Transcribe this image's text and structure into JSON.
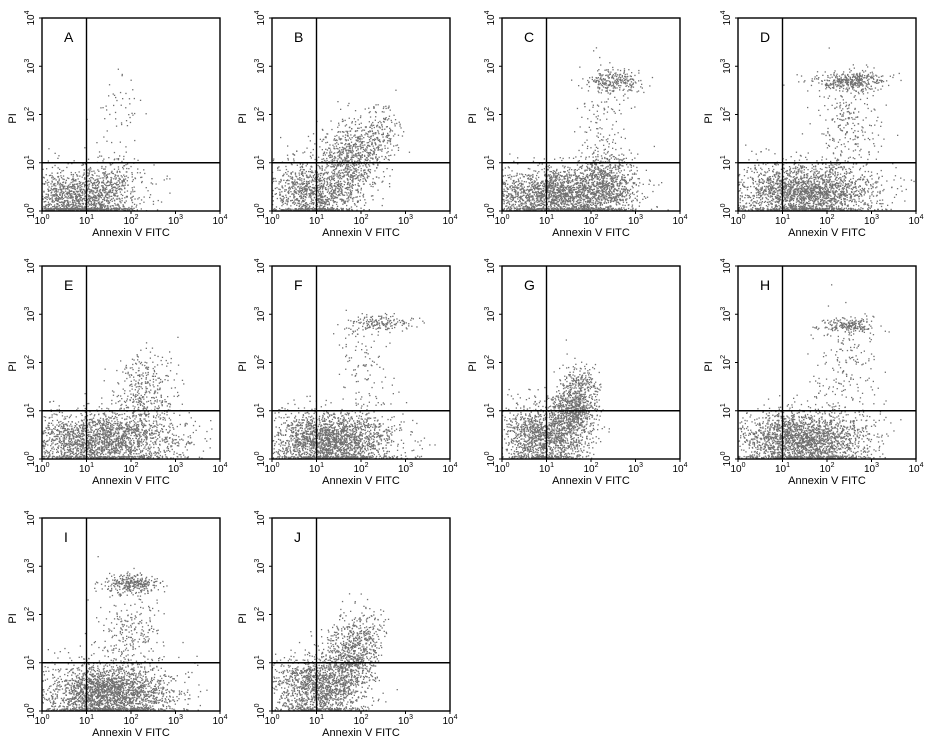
{
  "chart_data": [
    {
      "type": "scatter",
      "panel": "A",
      "xlabel": "Annexin V FITC",
      "ylabel": "PI",
      "xscale": "log",
      "yscale": "log",
      "xlim": [
        1,
        10000
      ],
      "ylim": [
        1,
        10000
      ],
      "gate": {
        "x": 10,
        "y": 10
      },
      "populations": [
        {
          "cx": 6,
          "cy": 1.8,
          "sx": 0.65,
          "sy": 0.3,
          "n": 1400
        },
        {
          "cx": 35,
          "cy": 4,
          "sx": 0.35,
          "sy": 0.35,
          "n": 250
        },
        {
          "cx": 50,
          "cy": 150,
          "sx": 0.25,
          "sy": 0.35,
          "n": 45
        }
      ]
    },
    {
      "type": "scatter",
      "panel": "B",
      "xlabel": "Annexin V FITC",
      "ylabel": "PI",
      "xscale": "log",
      "yscale": "log",
      "xlim": [
        1,
        10000
      ],
      "ylim": [
        1,
        10000
      ],
      "gate": {
        "x": 10,
        "y": 10
      },
      "populations": [
        {
          "cx": 8,
          "cy": 2.5,
          "sx": 0.5,
          "sy": 0.35,
          "n": 1100
        },
        {
          "cx": 60,
          "cy": 12,
          "sx": 0.35,
          "sy": 0.4,
          "n": 700
        },
        {
          "cx": 250,
          "cy": 40,
          "sx": 0.25,
          "sy": 0.3,
          "n": 200
        }
      ]
    },
    {
      "type": "scatter",
      "panel": "C",
      "xlabel": "Annexin V FITC",
      "ylabel": "PI",
      "xscale": "log",
      "yscale": "log",
      "xlim": [
        1,
        10000
      ],
      "ylim": [
        1,
        10000
      ],
      "gate": {
        "x": 10,
        "y": 10
      },
      "populations": [
        {
          "cx": 15,
          "cy": 2.2,
          "sx": 0.75,
          "sy": 0.28,
          "n": 2000
        },
        {
          "cx": 250,
          "cy": 4,
          "sx": 0.35,
          "sy": 0.35,
          "n": 700
        },
        {
          "cx": 300,
          "cy": 500,
          "sx": 0.3,
          "sy": 0.12,
          "n": 250
        },
        {
          "cx": 200,
          "cy": 60,
          "sx": 0.3,
          "sy": 0.5,
          "n": 120
        }
      ]
    },
    {
      "type": "scatter",
      "panel": "D",
      "xlabel": "Annexin V FITC",
      "ylabel": "PI",
      "xscale": "log",
      "yscale": "log",
      "xlim": [
        1,
        10000
      ],
      "ylim": [
        1,
        10000
      ],
      "gate": {
        "x": 10,
        "y": 10
      },
      "populations": [
        {
          "cx": 30,
          "cy": 2.5,
          "sx": 0.8,
          "sy": 0.3,
          "n": 2200
        },
        {
          "cx": 300,
          "cy": 500,
          "sx": 0.4,
          "sy": 0.1,
          "n": 380
        },
        {
          "cx": 300,
          "cy": 50,
          "sx": 0.35,
          "sy": 0.5,
          "n": 250
        }
      ]
    },
    {
      "type": "scatter",
      "panel": "E",
      "xlabel": "Annexin V FITC",
      "ylabel": "PI",
      "xscale": "log",
      "yscale": "log",
      "xlim": [
        1,
        10000
      ],
      "ylim": [
        1,
        10000
      ],
      "gate": {
        "x": 10,
        "y": 10
      },
      "populations": [
        {
          "cx": 20,
          "cy": 2.5,
          "sx": 0.9,
          "sy": 0.3,
          "n": 2200
        },
        {
          "cx": 200,
          "cy": 20,
          "sx": 0.35,
          "sy": 0.4,
          "n": 300
        },
        {
          "cx": 200,
          "cy": 60,
          "sx": 0.3,
          "sy": 0.3,
          "n": 60
        }
      ]
    },
    {
      "type": "scatter",
      "panel": "F",
      "xlabel": "Annexin V FITC",
      "ylabel": "PI",
      "xscale": "log",
      "yscale": "log",
      "xlim": [
        1,
        10000
      ],
      "ylim": [
        1,
        10000
      ],
      "gate": {
        "x": 10,
        "y": 10
      },
      "populations": [
        {
          "cx": 20,
          "cy": 2.5,
          "sx": 0.7,
          "sy": 0.3,
          "n": 2200
        },
        {
          "cx": 300,
          "cy": 700,
          "sx": 0.35,
          "sy": 0.08,
          "n": 150
        },
        {
          "cx": 100,
          "cy": 100,
          "sx": 0.35,
          "sy": 0.6,
          "n": 120
        }
      ]
    },
    {
      "type": "scatter",
      "panel": "G",
      "xlabel": "Annexin V FITC",
      "ylabel": "PI",
      "xscale": "log",
      "yscale": "log",
      "xlim": [
        1,
        10000
      ],
      "ylim": [
        1,
        10000
      ],
      "gate": {
        "x": 10,
        "y": 10
      },
      "populations": [
        {
          "cx": 8,
          "cy": 3,
          "sx": 0.45,
          "sy": 0.35,
          "n": 1300
        },
        {
          "cx": 40,
          "cy": 10,
          "sx": 0.25,
          "sy": 0.35,
          "n": 800
        },
        {
          "cx": 60,
          "cy": 30,
          "sx": 0.2,
          "sy": 0.25,
          "n": 150
        }
      ]
    },
    {
      "type": "scatter",
      "panel": "H",
      "xlabel": "Annexin V FITC",
      "ylabel": "PI",
      "xscale": "log",
      "yscale": "log",
      "xlim": [
        1,
        10000
      ],
      "ylim": [
        1,
        10000
      ],
      "gate": {
        "x": 10,
        "y": 10
      },
      "populations": [
        {
          "cx": 25,
          "cy": 2.5,
          "sx": 0.75,
          "sy": 0.3,
          "n": 2200
        },
        {
          "cx": 300,
          "cy": 600,
          "sx": 0.3,
          "sy": 0.08,
          "n": 200
        },
        {
          "cx": 250,
          "cy": 60,
          "sx": 0.35,
          "sy": 0.5,
          "n": 180
        }
      ]
    },
    {
      "type": "scatter",
      "panel": "I",
      "xlabel": "Annexin V FITC",
      "ylabel": "PI",
      "xscale": "log",
      "yscale": "log",
      "xlim": [
        1,
        10000
      ],
      "ylim": [
        1,
        10000
      ],
      "gate": {
        "x": 10,
        "y": 10
      },
      "populations": [
        {
          "cx": 30,
          "cy": 2.5,
          "sx": 0.7,
          "sy": 0.3,
          "n": 2300
        },
        {
          "cx": 100,
          "cy": 450,
          "sx": 0.3,
          "sy": 0.1,
          "n": 300
        },
        {
          "cx": 100,
          "cy": 40,
          "sx": 0.35,
          "sy": 0.5,
          "n": 250
        }
      ]
    },
    {
      "type": "scatter",
      "panel": "J",
      "xlabel": "Annexin V FITC",
      "ylabel": "PI",
      "xscale": "log",
      "yscale": "log",
      "xlim": [
        1,
        10000
      ],
      "ylim": [
        1,
        10000
      ],
      "gate": {
        "x": 10,
        "y": 10
      },
      "populations": [
        {
          "cx": 10,
          "cy": 3,
          "sx": 0.5,
          "sy": 0.35,
          "n": 1300
        },
        {
          "cx": 50,
          "cy": 12,
          "sx": 0.3,
          "sy": 0.4,
          "n": 700
        },
        {
          "cx": 120,
          "cy": 40,
          "sx": 0.25,
          "sy": 0.3,
          "n": 150
        }
      ]
    }
  ],
  "style": {
    "dot_color": "#707070",
    "axis_color": "#000000"
  }
}
